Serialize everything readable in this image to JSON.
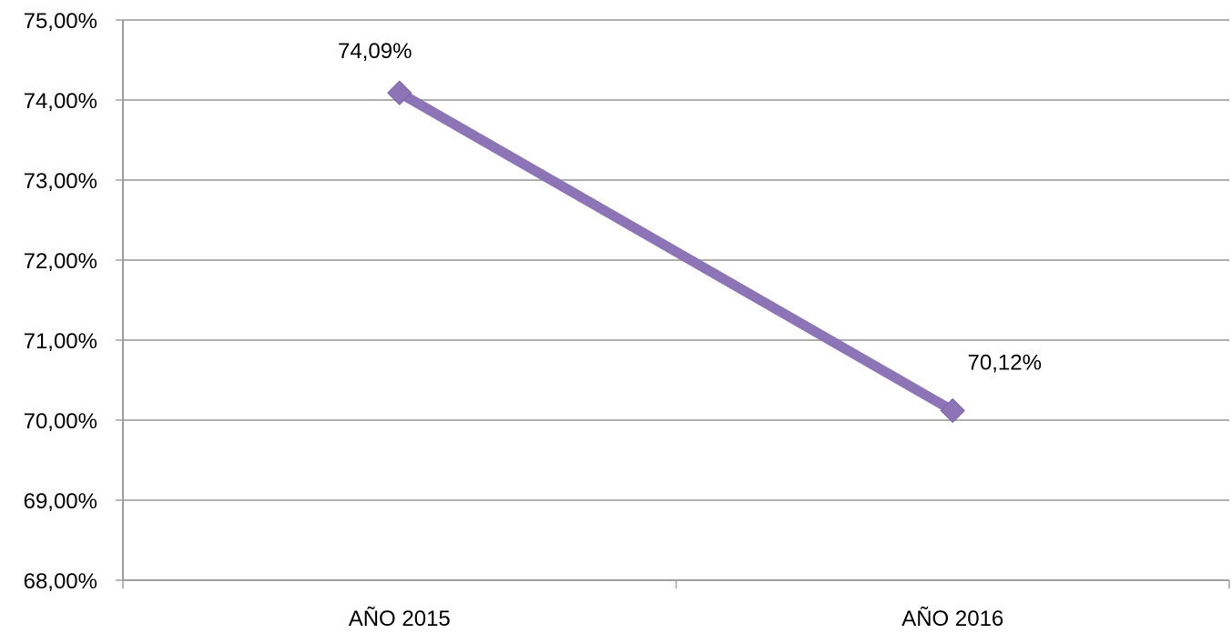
{
  "chart_data": {
    "type": "line",
    "categories": [
      "AÑO 2015",
      "AÑO 2016"
    ],
    "series": [
      {
        "values": [
          74.09,
          70.12
        ],
        "labels": [
          "74,09%",
          "70,12%"
        ],
        "color": "#8c74b6",
        "marker": "diamond"
      }
    ],
    "ylim": [
      68,
      75
    ],
    "yticks": [
      75,
      74,
      73,
      72,
      71,
      70,
      69,
      68
    ],
    "ytick_labels": [
      "75,00%",
      "74,00%",
      "73,00%",
      "72,00%",
      "71,00%",
      "70,00%",
      "69,00%",
      "68,00%"
    ],
    "grid": true,
    "gridline_color": "#b0b0b0",
    "axis_color": "#a0a0a0",
    "legend": "none"
  }
}
